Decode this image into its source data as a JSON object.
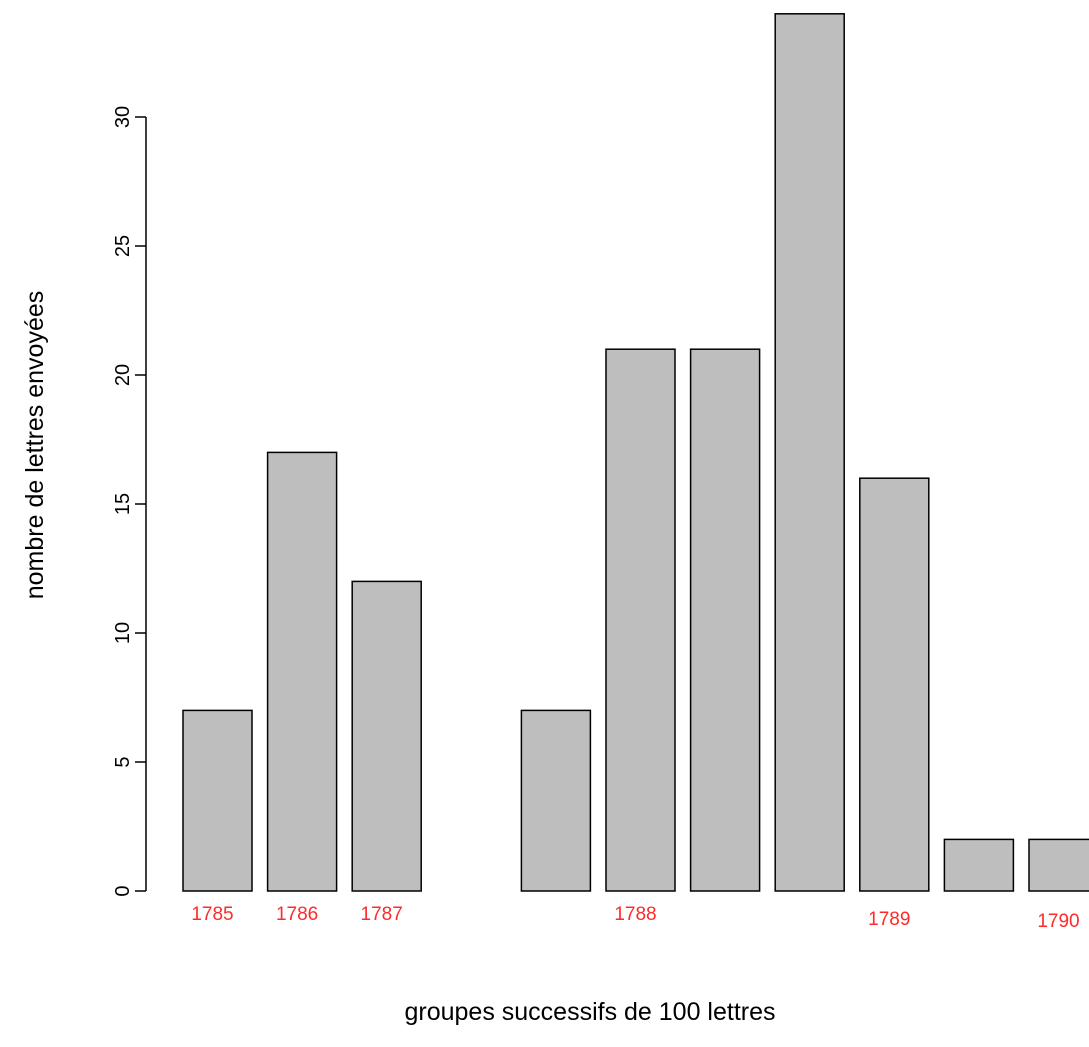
{
  "chart_data": {
    "type": "bar",
    "values": [
      7,
      17,
      12,
      0,
      7,
      21,
      21,
      34,
      16,
      2,
      2
    ],
    "bar_color": "#bebebe",
    "bar_stroke": "#000000",
    "xlabel": "groupes successifs de 100 lettres",
    "ylabel": "nombre de lettres envoyées",
    "ylim": [
      0,
      34
    ],
    "yticks": [
      0,
      5,
      10,
      15,
      20,
      25,
      30
    ],
    "grid": false,
    "legend": "none",
    "annotations": {
      "color": "#ff2a2a",
      "labels": [
        {
          "text": "1785",
          "bar": 0,
          "offset": -0.5
        },
        {
          "text": "1786",
          "bar": 1,
          "offset": -0.5
        },
        {
          "text": "1787",
          "bar": 2,
          "offset": -0.5
        },
        {
          "text": "1788",
          "bar": 5,
          "offset": -0.5
        },
        {
          "text": "1789",
          "bar": 8,
          "offset": -0.5
        },
        {
          "text": "1790",
          "bar": 10,
          "offset": -0.5
        }
      ]
    }
  }
}
